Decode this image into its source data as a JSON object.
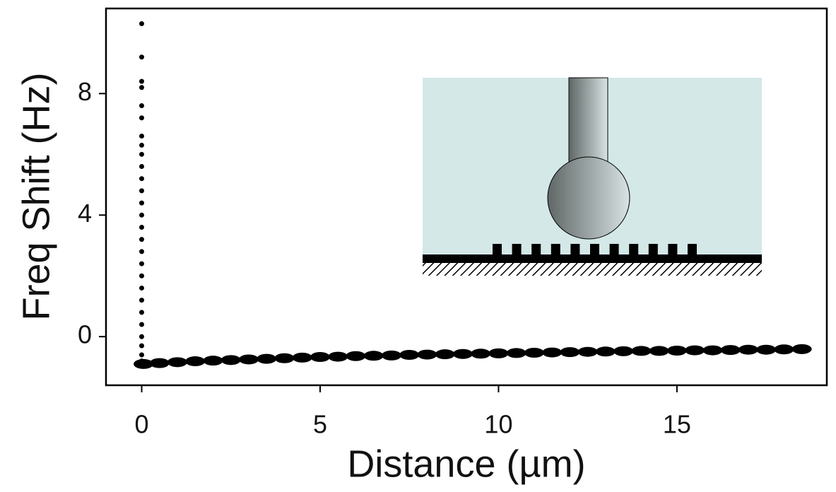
{
  "chart_data": {
    "type": "scatter",
    "x_label": "Distance (µm)",
    "y_label": "Freq Shift (Hz)",
    "color": "#000000",
    "xlim": [
      -1,
      19.2
    ],
    "ylim": [
      -1.6,
      10.8
    ],
    "xticks": [
      0,
      5,
      10,
      15
    ],
    "yticks": [
      0,
      4,
      8
    ],
    "x": [
      0,
      0,
      0,
      0,
      0,
      0,
      0,
      0,
      0,
      0,
      0,
      0,
      0,
      0,
      0,
      0,
      0,
      0,
      0,
      0,
      0,
      0,
      0,
      0,
      0,
      0,
      0,
      0.05,
      0.5,
      1,
      1.5,
      2,
      2.5,
      3,
      3.5,
      4,
      4.5,
      5,
      5.5,
      6,
      6.5,
      7,
      7.5,
      8,
      8.5,
      9,
      9.5,
      10,
      10.5,
      11,
      11.5,
      12,
      12.5,
      13,
      13.5,
      14,
      14.5,
      15,
      15.5,
      16,
      16.5,
      17,
      17.5,
      18,
      18.5
    ],
    "y": [
      10.3,
      9.2,
      8.4,
      8.2,
      7.6,
      7.2,
      6.6,
      6.3,
      6.0,
      5.6,
      5.2,
      4.8,
      4.4,
      4.0,
      3.6,
      3.2,
      2.8,
      2.4,
      2.0,
      1.6,
      1.2,
      0.8,
      0.4,
      0.0,
      -0.3,
      -0.6,
      -0.8,
      -0.9,
      -0.87,
      -0.84,
      -0.81,
      -0.79,
      -0.77,
      -0.75,
      -0.73,
      -0.71,
      -0.69,
      -0.67,
      -0.66,
      -0.64,
      -0.63,
      -0.62,
      -0.6,
      -0.59,
      -0.58,
      -0.57,
      -0.56,
      -0.55,
      -0.54,
      -0.53,
      -0.52,
      -0.51,
      -0.5,
      -0.49,
      -0.48,
      -0.47,
      -0.47,
      -0.46,
      -0.45,
      -0.45,
      -0.44,
      -0.43,
      -0.43,
      -0.42,
      -0.41
    ]
  }
}
